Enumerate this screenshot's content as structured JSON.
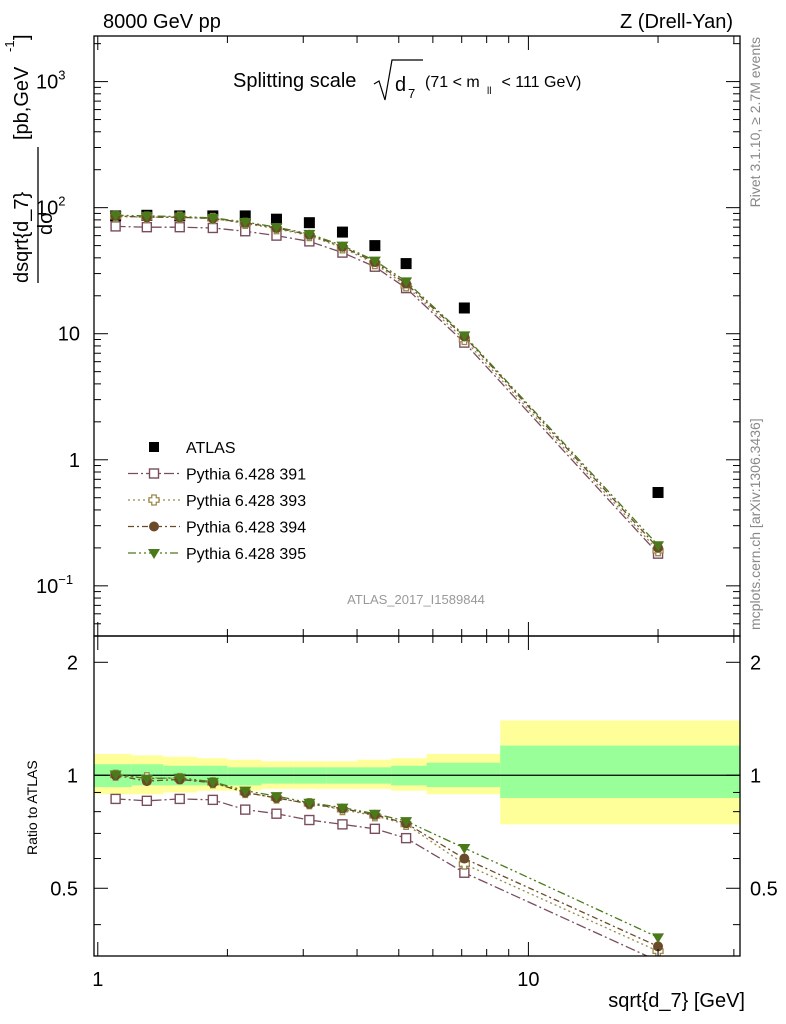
{
  "header": {
    "energy": "8000 GeV pp",
    "process": "Z (Drell-Yan)"
  },
  "side_labels": {
    "rivet": "Rivet 3.1.10, ≥ 2.7M events",
    "mcplots": "mcplots.cern.ch [arXiv:1306.3436]"
  },
  "chart_data": [
    {
      "type": "scatter",
      "panel": "main",
      "title": "Splitting scale √d7 (71 < mll < 111 GeV)",
      "title_parts": {
        "main": "Splitting scale",
        "sub": "7",
        "cut": "(71 < m",
        "cut_sub": "ll",
        "cut_end": " < 111 GeV)"
      },
      "ylabel": "dσ / dsqrt{d_7} [pb,GeV⁻¹]",
      "ylabel_parts": {
        "num": "dσ",
        "den": "dsqrt{d_7}",
        "unit": "[pb,GeV",
        "unit_sup": "-1",
        "unit_end": "]"
      },
      "xlabel": "sqrt{d_7} [GeV]",
      "analysis_id": "ATLAS_2017_I1589844",
      "x_scale": "log",
      "y_scale": "log",
      "xlim": [
        0.98,
        31
      ],
      "ylim": [
        0.04,
        2300
      ],
      "y_ticks": [
        {
          "v": 1000,
          "base": "10",
          "exp": "3"
        },
        {
          "v": 100,
          "base": "10",
          "exp": "2"
        },
        {
          "v": 10,
          "base": "10",
          "exp": ""
        },
        {
          "v": 1,
          "base": "1",
          "exp": ""
        },
        {
          "v": 0.1,
          "base": "10",
          "exp": "−1"
        }
      ],
      "legend_position": "lower-left",
      "series": [
        {
          "name": "ATLAS",
          "marker": "filled-square",
          "color": "#000000",
          "x": [
            1.1,
            1.3,
            1.55,
            1.85,
            2.2,
            2.6,
            3.1,
            3.7,
            4.4,
            5.2,
            7.1,
            20.0
          ],
          "y": [
            86,
            87,
            86,
            86,
            86,
            81,
            76,
            64,
            50,
            36,
            16,
            0.55
          ]
        },
        {
          "name": "Pythia 6.428 391",
          "marker": "open-square",
          "color": "#7a4d5e",
          "dash": "10,3,2,3",
          "x": [
            1.1,
            1.3,
            1.55,
            1.85,
            2.2,
            2.6,
            3.1,
            3.7,
            4.4,
            5.2,
            7.1,
            20.0
          ],
          "y": [
            71,
            70,
            70,
            69,
            65,
            60,
            54,
            44,
            34,
            23,
            8.5,
            0.18
          ]
        },
        {
          "name": "Pythia 6.428 393",
          "marker": "open-cross",
          "color": "#9a8a4a",
          "dash": "2,3",
          "x": [
            1.1,
            1.3,
            1.55,
            1.85,
            2.2,
            2.6,
            3.1,
            3.7,
            4.4,
            5.2,
            7.1,
            20.0
          ],
          "y": [
            85,
            84,
            84,
            82,
            75,
            68,
            60,
            48,
            36,
            24,
            9,
            0.19
          ]
        },
        {
          "name": "Pythia 6.428 394",
          "marker": "filled-circle",
          "color": "#6b4a2a",
          "dash": "6,3,2,3",
          "x": [
            1.1,
            1.3,
            1.55,
            1.85,
            2.2,
            2.6,
            3.1,
            3.7,
            4.4,
            5.2,
            7.1,
            20.0
          ],
          "y": [
            86,
            84,
            84,
            82,
            76,
            69,
            61,
            49,
            37,
            25,
            9.5,
            0.2
          ]
        },
        {
          "name": "Pythia 6.428 395",
          "marker": "filled-triangle-down",
          "color": "#4a7a1a",
          "dash": "8,3,2,3,2,3",
          "x": [
            1.1,
            1.3,
            1.55,
            1.85,
            2.2,
            2.6,
            3.1,
            3.7,
            4.4,
            5.2,
            7.1,
            20.0
          ],
          "y": [
            87,
            86,
            85,
            83,
            77,
            70,
            62,
            50,
            38,
            26,
            9.7,
            0.21
          ]
        }
      ]
    },
    {
      "type": "scatter",
      "panel": "ratio",
      "ylabel": "Ratio to ATLAS",
      "xlabel": "sqrt{d_7} [GeV]",
      "x_scale": "log",
      "xlim": [
        0.98,
        31
      ],
      "ylim": [
        0.33,
        2.35
      ],
      "y_ticks": [
        2,
        1,
        0.5
      ],
      "x_ticks": [
        1,
        10
      ],
      "bins": [
        0.98,
        1.2,
        1.42,
        1.7,
        2.0,
        2.4,
        2.85,
        3.4,
        4.0,
        4.8,
        5.8,
        8.6,
        31
      ],
      "band_inner": [
        [
          0.93,
          1.07
        ],
        [
          0.94,
          1.07
        ],
        [
          0.94,
          1.06
        ],
        [
          0.94,
          1.06
        ],
        [
          0.94,
          1.05
        ],
        [
          0.95,
          1.05
        ],
        [
          0.95,
          1.05
        ],
        [
          0.95,
          1.05
        ],
        [
          0.95,
          1.05
        ],
        [
          0.94,
          1.06
        ],
        [
          0.93,
          1.08
        ],
        [
          0.87,
          1.2
        ]
      ],
      "band_outer": [
        [
          0.89,
          1.14
        ],
        [
          0.89,
          1.13
        ],
        [
          0.9,
          1.12
        ],
        [
          0.91,
          1.11
        ],
        [
          0.91,
          1.1
        ],
        [
          0.92,
          1.09
        ],
        [
          0.92,
          1.09
        ],
        [
          0.92,
          1.09
        ],
        [
          0.92,
          1.1
        ],
        [
          0.91,
          1.11
        ],
        [
          0.89,
          1.14
        ],
        [
          0.74,
          1.4
        ]
      ],
      "band_colors": {
        "inner": "#99ff99",
        "outer": "#ffff99"
      },
      "series": [
        {
          "name": "Pythia 6.428 391",
          "marker": "open-square",
          "color": "#7a4d5e",
          "dash": "10,3,2,3",
          "x": [
            1.1,
            1.3,
            1.55,
            1.85,
            2.2,
            2.6,
            3.1,
            3.7,
            4.4,
            5.2,
            7.1,
            20.0
          ],
          "y": [
            0.865,
            0.855,
            0.865,
            0.86,
            0.81,
            0.79,
            0.76,
            0.74,
            0.72,
            0.68,
            0.55,
            0.32
          ]
        },
        {
          "name": "Pythia 6.428 393",
          "marker": "open-cross",
          "color": "#9a8a4a",
          "dash": "2,3",
          "x": [
            1.1,
            1.3,
            1.55,
            1.85,
            2.2,
            2.6,
            3.1,
            3.7,
            4.4,
            5.2,
            7.1,
            20.0
          ],
          "y": [
            1.0,
            0.985,
            0.98,
            0.955,
            0.9,
            0.87,
            0.84,
            0.81,
            0.78,
            0.74,
            0.58,
            0.34
          ]
        },
        {
          "name": "Pythia 6.428 394",
          "marker": "filled-circle",
          "color": "#6b4a2a",
          "dash": "6,3,2,3",
          "x": [
            1.1,
            1.3,
            1.55,
            1.85,
            2.2,
            2.6,
            3.1,
            3.7,
            4.4,
            5.2,
            7.1,
            20.0
          ],
          "y": [
            1.0,
            0.965,
            0.975,
            0.955,
            0.9,
            0.87,
            0.84,
            0.815,
            0.785,
            0.745,
            0.6,
            0.35
          ]
        },
        {
          "name": "Pythia 6.428 395",
          "marker": "filled-triangle-down",
          "color": "#4a7a1a",
          "dash": "8,3,2,3,2,3",
          "x": [
            1.1,
            1.3,
            1.55,
            1.85,
            2.2,
            2.6,
            3.1,
            3.7,
            4.4,
            5.2,
            7.1,
            20.0
          ],
          "y": [
            1.005,
            0.98,
            0.985,
            0.96,
            0.91,
            0.88,
            0.845,
            0.82,
            0.79,
            0.755,
            0.64,
            0.37
          ]
        }
      ]
    }
  ]
}
